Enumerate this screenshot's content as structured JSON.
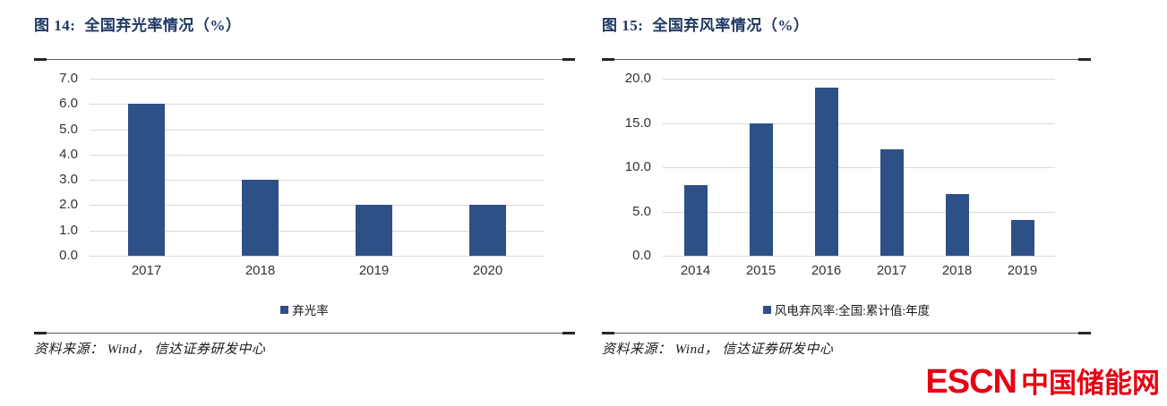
{
  "colors": {
    "bar": "#2d5087",
    "title_navy": "#1f3864",
    "grid": "#d9d9d9",
    "rule_line": "#595959",
    "rule_cap": "#262626",
    "axis_text": "#333333",
    "logo_red": "#e60012"
  },
  "chart_data": [
    {
      "type": "bar",
      "figure_label": "图 14:",
      "title": "全国弃光率情况（%）",
      "categories": [
        "2017",
        "2018",
        "2019",
        "2020"
      ],
      "values": [
        6.0,
        3.0,
        2.0,
        2.0
      ],
      "xlabel": "",
      "ylabel": "",
      "ylim": [
        0,
        7
      ],
      "y_tick_step": 1,
      "y_tick_labels": [
        "0.0",
        "1.0",
        "2.0",
        "3.0",
        "4.0",
        "5.0",
        "6.0",
        "7.0"
      ],
      "grid": true,
      "legend": "弃光率",
      "legend_position": "bottom",
      "source": "资料来源： Wind， 信达证券研发中心"
    },
    {
      "type": "bar",
      "figure_label": "图 15:",
      "title": "全国弃风率情况（%）",
      "categories": [
        "2014",
        "2015",
        "2016",
        "2017",
        "2018",
        "2019"
      ],
      "values": [
        8.0,
        15.0,
        19.0,
        12.0,
        7.0,
        4.0
      ],
      "xlabel": "",
      "ylabel": "",
      "ylim": [
        0,
        20
      ],
      "y_tick_step": 5,
      "y_tick_labels": [
        "0.0",
        "5.0",
        "10.0",
        "15.0",
        "20.0"
      ],
      "grid": true,
      "legend": "风电弃风率:全国:累计值:年度",
      "legend_position": "bottom",
      "source": "资料来源： Wind， 信达证券研发中心"
    }
  ],
  "logo": {
    "escn": "ESCN",
    "cn": "中国储能网"
  }
}
